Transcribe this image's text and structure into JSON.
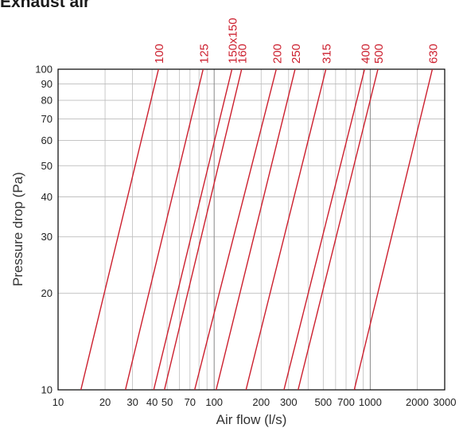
{
  "chart_data": {
    "type": "line",
    "title": "Exhaust air",
    "xlabel": "Air flow (l/s)",
    "ylabel": "Pressure drop (Pa)",
    "xscale": "log",
    "yscale": "log",
    "xlim": [
      10,
      3000
    ],
    "ylim": [
      10,
      100
    ],
    "x_ticks": [
      10,
      20,
      30,
      40,
      50,
      70,
      100,
      200,
      300,
      500,
      700,
      1000,
      2000,
      3000
    ],
    "y_ticks": [
      10,
      20,
      30,
      40,
      50,
      60,
      70,
      80,
      90,
      100
    ],
    "grid": true,
    "line_color": "#cc1f2e",
    "series": [
      {
        "name": "100",
        "x": [
          14,
          44
        ],
        "y": [
          10,
          100
        ]
      },
      {
        "name": "125",
        "x": [
          27,
          85
        ],
        "y": [
          10,
          100
        ]
      },
      {
        "name": "150x150",
        "x": [
          41,
          130
        ],
        "y": [
          10,
          100
        ]
      },
      {
        "name": "160",
        "x": [
          48,
          150
        ],
        "y": [
          10,
          100
        ]
      },
      {
        "name": "200",
        "x": [
          75,
          250
        ],
        "y": [
          10,
          100
        ]
      },
      {
        "name": "250",
        "x": [
          103,
          330
        ],
        "y": [
          10,
          100
        ]
      },
      {
        "name": "315",
        "x": [
          160,
          520
        ],
        "y": [
          10,
          100
        ]
      },
      {
        "name": "400",
        "x": [
          280,
          920
        ],
        "y": [
          10,
          100
        ]
      },
      {
        "name": "500",
        "x": [
          345,
          1120
        ],
        "y": [
          10,
          100
        ]
      },
      {
        "name": "630",
        "x": [
          790,
          2500
        ],
        "y": [
          10,
          100
        ]
      }
    ]
  }
}
